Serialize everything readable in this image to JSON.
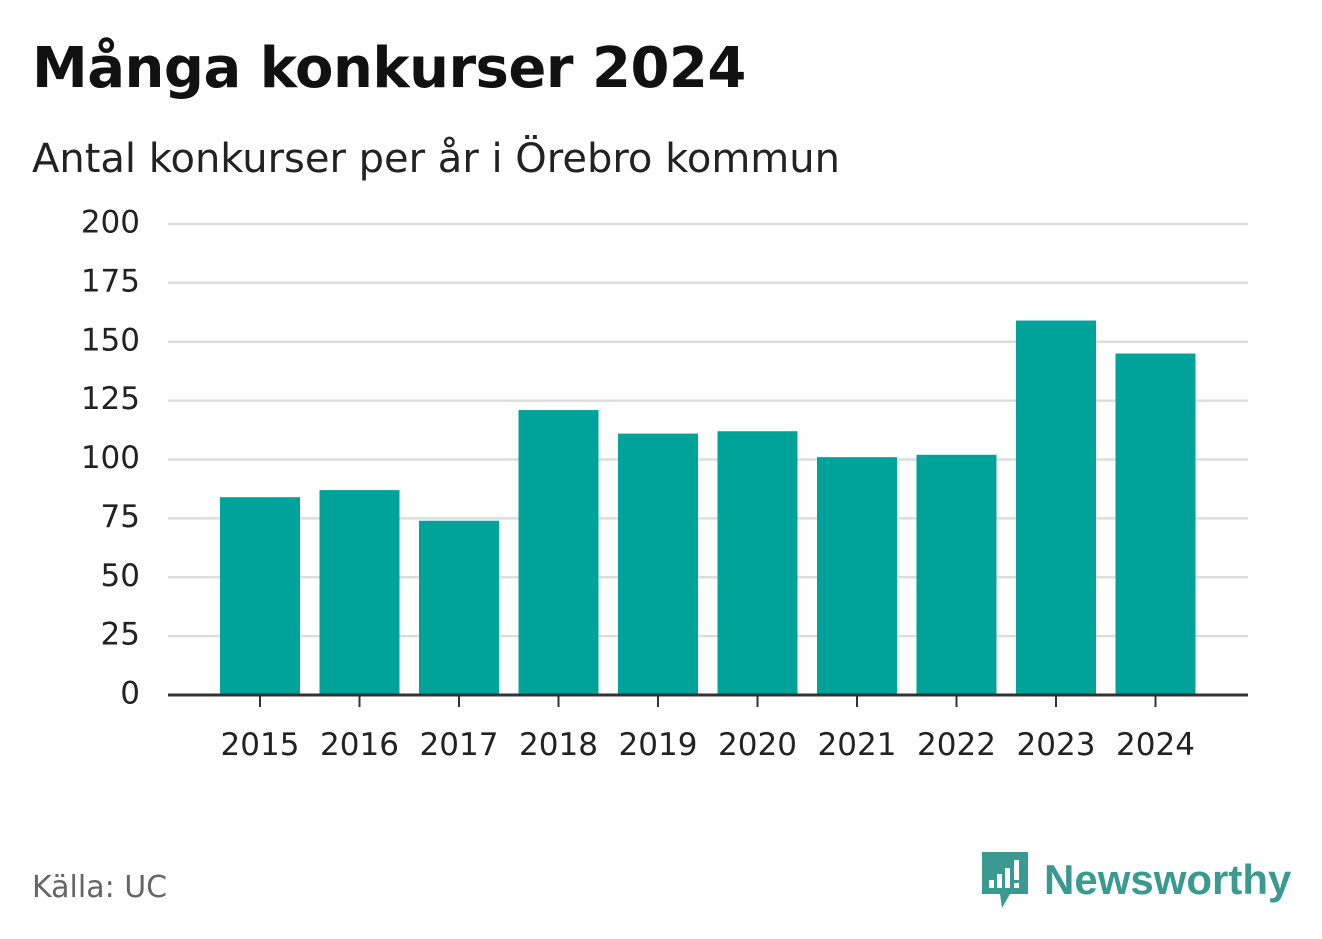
{
  "title": "Många konkurser 2024",
  "subtitle": "Antal konkurser per år i Örebro kommun",
  "source": "Källa: UC",
  "brand": {
    "name": "Newsworthy",
    "color": "#3a9a92",
    "icon": "newsworthy-logo-icon"
  },
  "colors": {
    "bar": "#00a39a",
    "grid": "#dddddd",
    "axis": "#333333",
    "tick_text": "#222222"
  },
  "chart_data": {
    "type": "bar",
    "title": "Många konkurser 2024",
    "subtitle": "Antal konkurser per år i Örebro kommun",
    "xlabel": "",
    "ylabel": "",
    "categories": [
      "2015",
      "2016",
      "2017",
      "2018",
      "2019",
      "2020",
      "2021",
      "2022",
      "2023",
      "2024"
    ],
    "values": [
      84,
      87,
      74,
      121,
      111,
      112,
      101,
      102,
      159,
      145
    ],
    "ylim": [
      0,
      200
    ],
    "yticks": [
      0,
      25,
      50,
      75,
      100,
      125,
      150,
      175,
      200
    ],
    "grid": true,
    "legend": "none"
  }
}
